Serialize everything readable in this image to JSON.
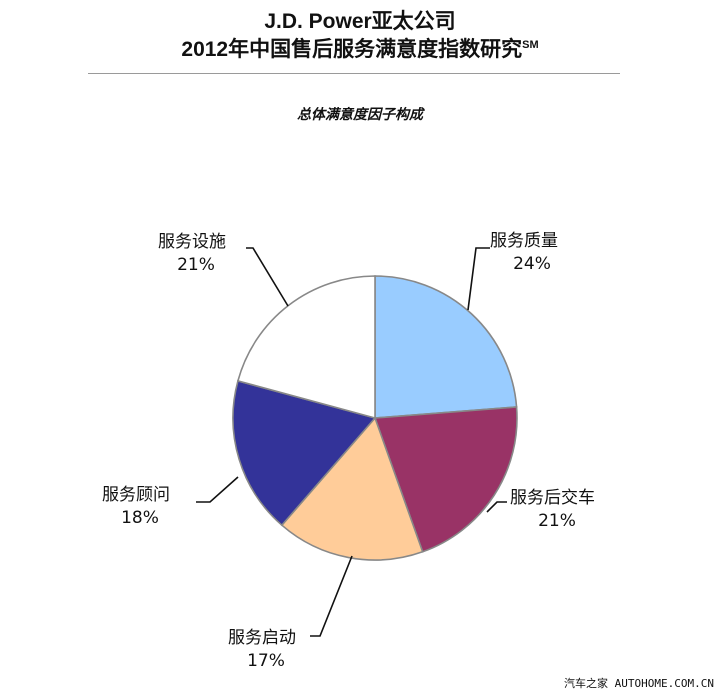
{
  "header": {
    "title_line1": "J.D. Power亚太公司",
    "title_line2": "2012年中国售后服务满意度指数研究",
    "title_superscript": "SM"
  },
  "chart_data": {
    "type": "pie",
    "title": "总体满意度因子构成",
    "slices": [
      {
        "label": "服务质量",
        "value": 24,
        "value_label": "24%",
        "color": "#99ccff"
      },
      {
        "label": "服务后交车",
        "value": 21,
        "value_label": "21%",
        "color": "#993366"
      },
      {
        "label": "服务启动",
        "value": 17,
        "value_label": "17%",
        "color": "#ffcc99"
      },
      {
        "label": "服务顾问",
        "value": 18,
        "value_label": "18%",
        "color": "#333399"
      },
      {
        "label": "服务设施",
        "value": 21,
        "value_label": "21%",
        "color": "#ffffff"
      }
    ],
    "start_angle": "12 o'clock",
    "direction": "clockwise",
    "outline_color": "#888888",
    "legend": "none"
  },
  "watermark": {
    "text": "汽车之家 AUTOHOME.COM.CN"
  }
}
